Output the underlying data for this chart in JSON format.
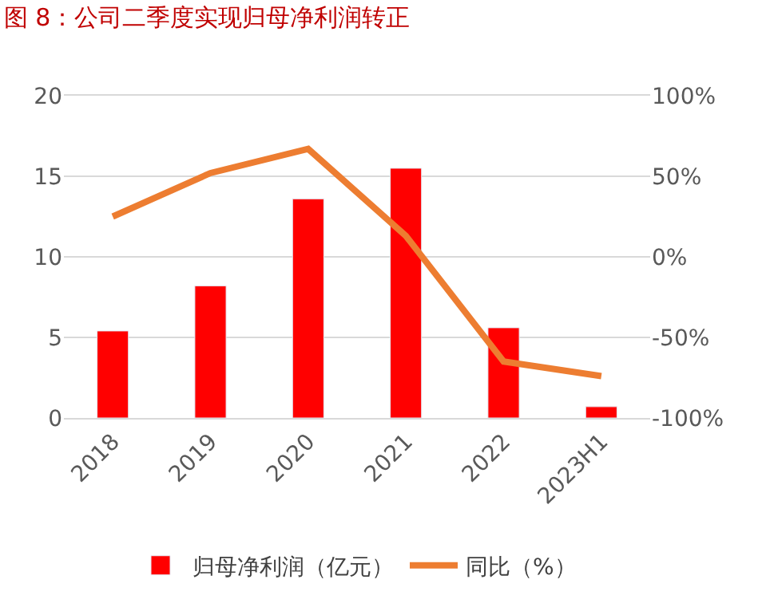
{
  "chart_data": {
    "type": "bar",
    "title": "图 8：公司二季度实现归母净利润转正",
    "categories": [
      "2018",
      "2019",
      "2020",
      "2021",
      "2022",
      "2023H1"
    ],
    "series": [
      {
        "name": "归母净利润（亿元）",
        "color": "#ff0000",
        "values": [
          5.4,
          8.2,
          13.6,
          15.5,
          5.6,
          0.7
        ]
      },
      {
        "name": "同比（%）",
        "type": "line",
        "axis": "y2",
        "color": "#ed7d31",
        "values": [
          25,
          52,
          67,
          13,
          -65,
          -74
        ]
      }
    ],
    "ylim": [
      0,
      20
    ],
    "yticks": [
      0,
      5,
      10,
      15,
      20
    ],
    "y2lim": [
      -100,
      100
    ],
    "y2ticks": [
      {
        "value": -100,
        "label": "-100%"
      },
      {
        "value": -50,
        "label": "-50%"
      },
      {
        "value": 0,
        "label": "0%"
      },
      {
        "value": 50,
        "label": "50%"
      },
      {
        "value": 100,
        "label": "100%"
      }
    ],
    "grid": "y",
    "legend": "bottom",
    "marker": "none",
    "line_style": "solid"
  }
}
